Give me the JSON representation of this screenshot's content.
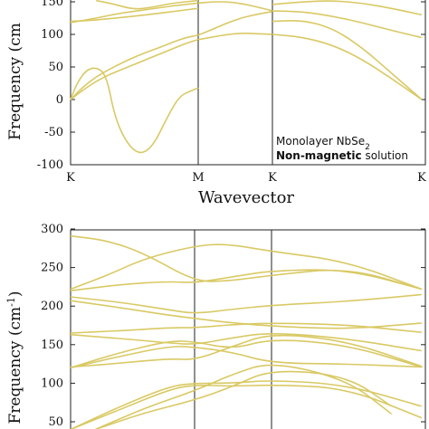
{
  "line_color": "#d9c964",
  "chart_data": [
    {
      "type": "line",
      "ylabel": "Frequency (cm",
      "xlabel": "Wavevector",
      "ylim": [
        -100,
        160
      ],
      "yticks": [
        "150",
        "100",
        "50",
        "0",
        "-50",
        "-100"
      ],
      "ytick_values": [
        150,
        100,
        50,
        0,
        -50,
        -100
      ],
      "xticks": [
        "K",
        "M",
        "K",
        "K"
      ],
      "annotation_line1": "Monolayer NbSe",
      "annotation_sub": "2",
      "annotation_bold": "Non-magnetic",
      "annotation_rest": " solution",
      "series": [
        {
          "x": [
            0,
            0.1,
            0.2,
            0.3,
            0.4,
            0.5,
            0.6,
            0.7,
            0.8,
            0.9,
            1.0
          ],
          "y": [
            0,
            15,
            28,
            38,
            46,
            54,
            62,
            70,
            78,
            86,
            92
          ]
        },
        {
          "x": [
            0,
            0.1,
            0.2,
            0.3,
            0.4,
            0.5,
            0.6,
            0.7,
            0.8,
            0.9,
            1.0
          ],
          "y": [
            0,
            20,
            35,
            46,
            56,
            65,
            73,
            80,
            88,
            95,
            99
          ]
        },
        {
          "x": [
            0,
            0.05,
            0.12,
            0.2,
            0.28,
            0.35,
            0.45,
            0.55,
            0.65,
            0.75,
            0.85,
            0.95,
            1.0
          ],
          "y": [
            0,
            25,
            45,
            50,
            38,
            -30,
            -70,
            -85,
            -70,
            -30,
            5,
            14,
            18
          ]
        },
        {
          "x": [
            0,
            0.2,
            0.4,
            0.6,
            0.8,
            1.0
          ],
          "y": [
            120,
            122,
            126,
            130,
            135,
            140
          ]
        },
        {
          "x": [
            0,
            0.2,
            0.4,
            0.6,
            0.8,
            1.0
          ],
          "y": [
            118,
            125,
            133,
            138,
            144,
            148
          ]
        },
        {
          "x": [
            0.2,
            0.35,
            0.5,
            0.65,
            0.8,
            1.0
          ],
          "y": [
            152,
            146,
            138,
            142,
            148,
            152
          ]
        },
        {
          "x": [
            1.0,
            1.2,
            1.4,
            1.6,
            1.8,
            2.0
          ],
          "y": [
            92,
            96,
            100,
            102,
            101,
            100
          ]
        },
        {
          "x": [
            1.0,
            1.2,
            1.4,
            1.6,
            1.8,
            2.0
          ],
          "y": [
            99,
            108,
            118,
            126,
            131,
            135
          ]
        },
        {
          "x": [
            1.0,
            1.2,
            1.4,
            1.6,
            1.8,
            2.0
          ],
          "y": [
            148,
            150,
            150,
            147,
            142,
            136
          ]
        },
        {
          "x": [
            2.0,
            2.2,
            2.4,
            2.6,
            2.8,
            3.0
          ],
          "y": [
            100,
            96,
            84,
            62,
            32,
            0
          ]
        },
        {
          "x": [
            2.0,
            2.2,
            2.4,
            2.6,
            2.8,
            3.0
          ],
          "y": [
            120,
            122,
            110,
            80,
            40,
            0
          ]
        },
        {
          "x": [
            2.0,
            2.2,
            2.4,
            2.6,
            2.8,
            3.0
          ],
          "y": [
            136,
            135,
            128,
            118,
            106,
            95
          ]
        },
        {
          "x": [
            2.0,
            2.2,
            2.4,
            2.6,
            2.8,
            3.0
          ],
          "y": [
            146,
            150,
            152,
            148,
            140,
            130
          ]
        }
      ]
    },
    {
      "type": "line",
      "ylabel": "Frequency (cm",
      "ylabel_sup": "-1",
      "ylabel_end": ")",
      "ylim": [
        50,
        300
      ],
      "yticks": [
        "300",
        "250",
        "200",
        "150",
        "100",
        "50"
      ],
      "ytick_values": [
        300,
        250,
        200,
        150,
        100,
        50
      ],
      "series": [
        {
          "x": [
            0,
            0.3,
            0.6,
            1.0,
            1.4,
            2.0,
            2.5,
            3.0
          ],
          "y": [
            291,
            285,
            268,
            232,
            232,
            240,
            250,
            222
          ]
        },
        {
          "x": [
            0,
            0.3,
            0.6,
            1.0,
            1.4,
            2.0,
            2.5,
            3.0
          ],
          "y": [
            222,
            240,
            262,
            278,
            281,
            271,
            258,
            222
          ]
        },
        {
          "x": [
            0,
            0.4,
            0.8,
            1.0,
            1.5,
            2.0,
            2.5,
            3.0
          ],
          "y": [
            220,
            228,
            232,
            230,
            238,
            246,
            248,
            222
          ]
        },
        {
          "x": [
            0,
            0.4,
            0.8,
            1.0,
            1.5,
            2.0,
            2.5,
            3.0
          ],
          "y": [
            212,
            205,
            195,
            190,
            196,
            201,
            206,
            215
          ]
        },
        {
          "x": [
            0,
            0.4,
            0.8,
            1.0,
            1.5,
            2.0,
            2.5,
            3.0
          ],
          "y": [
            207,
            198,
            188,
            184,
            178,
            174,
            170,
            178
          ]
        },
        {
          "x": [
            0,
            0.4,
            0.8,
            1.0,
            1.5,
            2.0,
            2.5,
            3.0
          ],
          "y": [
            165,
            168,
            172,
            172,
            176,
            178,
            176,
            166
          ]
        },
        {
          "x": [
            0,
            0.4,
            0.8,
            1.0,
            1.5,
            2.0,
            2.5,
            3.0
          ],
          "y": [
            163,
            158,
            152,
            150,
            159,
            166,
            158,
            142
          ]
        },
        {
          "x": [
            0,
            0.4,
            0.8,
            1.0,
            1.5,
            2.0,
            2.5,
            3.0
          ],
          "y": [
            121,
            126,
            132,
            130,
            148,
            165,
            155,
            122
          ]
        },
        {
          "x": [
            0,
            0.4,
            0.8,
            1.0,
            1.5,
            2.0,
            2.5,
            3.0
          ],
          "y": [
            120,
            140,
            155,
            154,
            144,
            158,
            150,
            121
          ]
        },
        {
          "x": [
            0,
            0.4,
            0.8,
            1.0,
            1.5,
            2.0,
            2.5,
            3.0
          ],
          "y": [
            120,
            135,
            148,
            147,
            140,
            126,
            125,
            121
          ]
        },
        {
          "x": [
            0,
            0.4,
            0.8,
            1.0,
            1.5,
            2.0,
            2.5,
            3.0
          ],
          "y": [
            40,
            70,
            96,
            100,
            100,
            104,
            98,
            70
          ]
        },
        {
          "x": [
            0,
            0.4,
            0.8,
            1.0,
            1.5,
            2.0,
            2.5,
            3.0
          ],
          "y": [
            40,
            66,
            92,
            98,
            96,
            98,
            94,
            55
          ]
        },
        {
          "x": [
            0.2,
            0.6,
            1.0,
            1.5,
            2.0,
            2.5,
            2.8
          ],
          "y": [
            40,
            68,
            90,
            112,
            128,
            105,
            60
          ]
        },
        {
          "x": [
            0.2,
            0.6,
            1.0,
            1.5,
            2.0,
            2.5,
            2.8
          ],
          "y": [
            40,
            62,
            78,
            96,
            118,
            110,
            70
          ]
        }
      ]
    }
  ]
}
